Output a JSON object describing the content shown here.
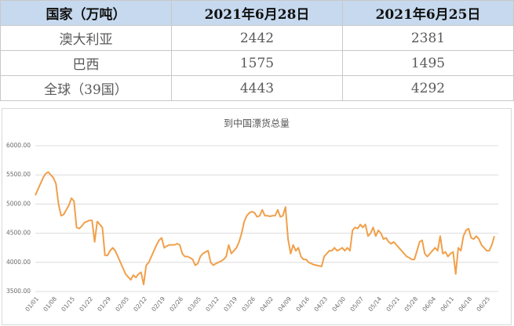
{
  "table": {
    "header": [
      "国家（万吨）",
      "2021年6月28日",
      "2021年6月25日"
    ],
    "rows": [
      [
        "澳大利亚",
        "2442",
        "2381"
      ],
      [
        "巴西",
        "1575",
        "1495"
      ],
      [
        "全球（39国）",
        "4443",
        "4292"
      ]
    ]
  },
  "chart_data": {
    "type": "line",
    "title": "到中国漂货总量",
    "categories": [
      "01/01",
      null,
      null,
      null,
      null,
      null,
      null,
      "01/08",
      null,
      null,
      null,
      null,
      null,
      null,
      "01/15",
      null,
      null,
      null,
      null,
      null,
      null,
      "01/22",
      null,
      null,
      null,
      null,
      null,
      null,
      "01/29",
      null,
      null,
      null,
      null,
      null,
      null,
      "02/05",
      null,
      null,
      null,
      null,
      null,
      null,
      "02/12",
      null,
      null,
      null,
      null,
      null,
      null,
      "02/19",
      null,
      null,
      null,
      null,
      null,
      null,
      "02/26",
      null,
      null,
      null,
      null,
      null,
      null,
      "03/05",
      null,
      null,
      null,
      null,
      null,
      null,
      "03/12",
      null,
      null,
      null,
      null,
      null,
      null,
      "03/19",
      null,
      null,
      null,
      null,
      null,
      null,
      "03/26",
      null,
      null,
      null,
      null,
      null,
      null,
      "04/02",
      null,
      null,
      null,
      null,
      null,
      null,
      "04/09",
      null,
      null,
      null,
      null,
      null,
      null,
      "04/16",
      null,
      null,
      null,
      null,
      null,
      null,
      "04/23",
      null,
      null,
      null,
      null,
      null,
      null,
      "04/30",
      null,
      null,
      null,
      null,
      null,
      null,
      "05/07",
      null,
      null,
      null,
      null,
      null,
      null,
      "05/14",
      null,
      null,
      null,
      null,
      null,
      null,
      "05/21",
      null,
      null,
      null,
      null,
      null,
      null,
      "05/28",
      null,
      null,
      null,
      null,
      null,
      null,
      "06/04",
      null,
      null,
      null,
      null,
      null,
      null,
      "06/11",
      null,
      null,
      null,
      null,
      null,
      null,
      "06/18",
      null,
      null,
      null,
      null,
      null,
      null,
      "06/25",
      null,
      null,
      null
    ],
    "values": [
      5150,
      5250,
      5350,
      5450,
      5520,
      5550,
      5500,
      5450,
      5350,
      5000,
      4800,
      4820,
      4900,
      4980,
      5100,
      5050,
      4600,
      4580,
      4620,
      4680,
      4700,
      4720,
      4720,
      4350,
      4700,
      4650,
      4600,
      4120,
      4120,
      4200,
      4250,
      4200,
      4100,
      4000,
      3900,
      3800,
      3750,
      3700,
      3780,
      3740,
      3800,
      3830,
      3620,
      3950,
      4000,
      4100,
      4200,
      4300,
      4380,
      4420,
      4250,
      4280,
      4300,
      4300,
      4300,
      4320,
      4300,
      4150,
      4100,
      4100,
      4080,
      4050,
      3950,
      3980,
      4100,
      4150,
      4180,
      4200,
      4000,
      3950,
      3980,
      4000,
      4020,
      4050,
      4100,
      4300,
      4150,
      4200,
      4250,
      4350,
      4500,
      4700,
      4800,
      4850,
      4870,
      4850,
      4780,
      4800,
      4900,
      4800,
      4800,
      4790,
      4800,
      4800,
      4900,
      4780,
      4800,
      4950,
      4400,
      4150,
      4300,
      4200,
      4250,
      4100,
      4050,
      4050,
      4000,
      3980,
      3960,
      3950,
      3940,
      3930,
      4100,
      4150,
      4200,
      4200,
      4250,
      4200,
      4220,
      4250,
      4200,
      4250,
      4200,
      4550,
      4600,
      4580,
      4650,
      4600,
      4650,
      4450,
      4500,
      4600,
      4450,
      4550,
      4500,
      4400,
      4420,
      4350,
      4320,
      4350,
      4300,
      4250,
      4200,
      4150,
      4100,
      4080,
      4050,
      4050,
      4200,
      4350,
      4380,
      4150,
      4100,
      4150,
      4200,
      4250,
      4200,
      4450,
      4150,
      4180,
      4100,
      4150,
      4180,
      3800,
      4250,
      4200,
      4450,
      4550,
      4580,
      4420,
      4400,
      4450,
      4400,
      4300,
      4250,
      4200,
      4200,
      4300,
      4450
    ],
    "color": "#f0a04b",
    "ylim": [
      3500,
      6000
    ],
    "yticks": [
      {
        "value": 3500,
        "label": "3500.00"
      },
      {
        "value": 4000,
        "label": "4000.00"
      },
      {
        "value": 4500,
        "label": "4500.00"
      },
      {
        "value": 5000,
        "label": "5000.00"
      },
      {
        "value": 5500,
        "label": "5500.00"
      },
      {
        "value": 6000,
        "label": "6000.00"
      }
    ],
    "grid": true
  }
}
